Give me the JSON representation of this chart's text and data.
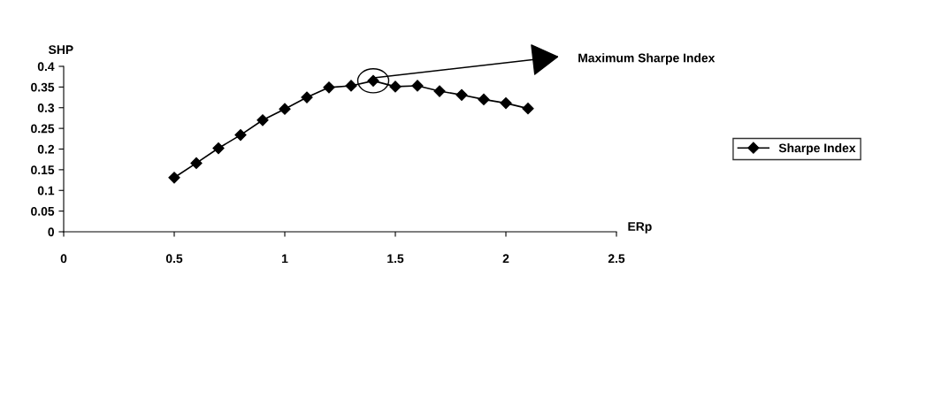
{
  "chart_data": {
    "type": "line",
    "xlabel": "ERp",
    "ylabel": "SHP",
    "x": [
      0.5,
      0.6,
      0.7,
      0.8,
      0.9,
      1.0,
      1.1,
      1.2,
      1.3,
      1.4,
      1.5,
      1.6,
      1.7,
      1.8,
      1.9,
      2.0,
      2.1
    ],
    "series": [
      {
        "name": "Sharpe Index",
        "color": "#000000",
        "values": [
          0.131,
          0.166,
          0.202,
          0.234,
          0.27,
          0.297,
          0.325,
          0.349,
          0.353,
          0.365,
          0.351,
          0.353,
          0.34,
          0.331,
          0.32,
          0.311,
          0.298
        ]
      }
    ],
    "xlim": [
      0,
      2.5
    ],
    "xticks": [
      0,
      0.5,
      1,
      1.5,
      2,
      2.5
    ],
    "ylim": [
      0,
      0.4
    ],
    "yticks": [
      0,
      0.05,
      0.1,
      0.15,
      0.2,
      0.25,
      0.3,
      0.35,
      0.4
    ],
    "annotations": [
      "Maximum Sharpe Index"
    ],
    "grid": false,
    "legend": "right",
    "marker": "diamond",
    "line_style": "solid"
  }
}
